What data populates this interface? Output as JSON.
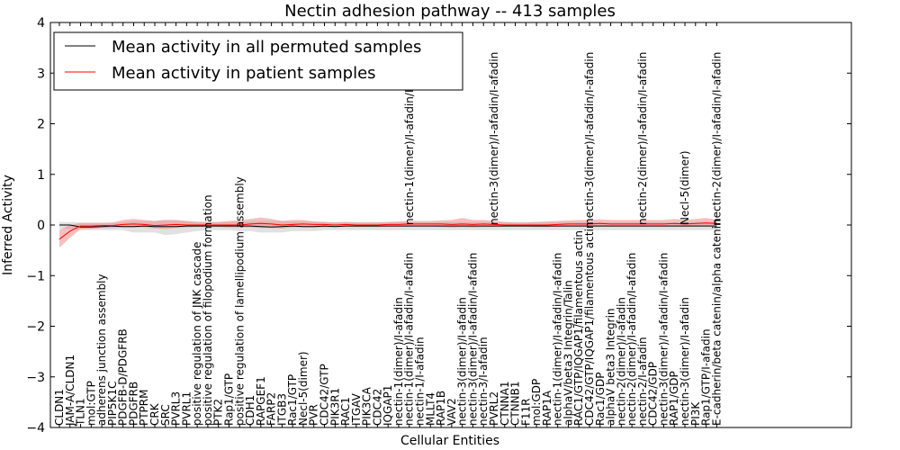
{
  "chart_data": {
    "type": "line",
    "title": "Nectin adhesion pathway -- 413 samples",
    "xlabel": "Cellular Entities",
    "ylabel": "Inferred Activity",
    "ylim": [
      -4,
      4
    ],
    "yticks": [
      -4,
      -3,
      -2,
      -1,
      0,
      1,
      2,
      3,
      4
    ],
    "ytick_labels": [
      "−4",
      "−3",
      "−2",
      "−1",
      "0",
      "1",
      "2",
      "3",
      "4"
    ],
    "legend_position": "top-left",
    "categories": [
      "CLDN1",
      "JAM-A/CLDN1",
      "TLN1",
      "mol:GTP",
      "adherens junction assembly",
      "PIP5K1C",
      "PDGFB-D/PDGFRB",
      "PDGFRB",
      "PTPRM",
      "CRK",
      "SRC",
      "PVRL3",
      "PVRL1",
      "positive regulation of JNK cascade",
      "positive regulation of filopodium formation",
      "PTK2",
      "Rap1/GTP",
      "positive regulation of lamellipodium assembly",
      "CDH1",
      "RAPGEF1",
      "FARP2",
      "ITGB3",
      "Rac1/GTP",
      "Necl-5(dimer)",
      "PVR",
      "CDC42/GTP",
      "PIK3R1",
      "RAC1",
      "ITGAV",
      "PIK3CA",
      "CDC42",
      "IQGAP1",
      "nectin-1(dimer)/I-afadin",
      "nectin-1(dimer)/I-afadin/I-afadin",
      "nectin-1/I-afadin",
      "MLLT4",
      "RAP1B",
      "VAV2",
      "nectin-3(dimer)/I-afadin",
      "nectin-3(dimer)/I-afadin/I-afadin",
      "nectin-3/I-afadin",
      "PVRL2",
      "CTNNA1",
      "CTNNB1",
      "F11R",
      "mol:GDP",
      "RAP1A",
      "nectin-1(dimer)/I-afadin/I-afadin",
      "alphaV/beta3 Integrin/Talin",
      "RAC1/GTP/IQGAP1/filamentous actin",
      "CDC42/GTP/IQGAP1/filamentous actin",
      "Rac1/GDP",
      "alphaV beta3 Integrin",
      "nectin-2(dimer)/I-afadin",
      "nectin-2(dimer)/I-afadin/I-afadin",
      "nectin-2/I-afadin",
      "CDC42/GDP",
      "nectin-3(dimer)/I-afadin/I-afadin",
      "RAP1/GDP",
      "nectin-3(dimer)/I-afadin",
      "PI3K",
      "Rap1/GTP/I-afadin",
      "E-cadherin/beta catenin/alpha catenin"
    ],
    "upper_labels": [
      {
        "index": 32,
        "text": "nectin-1(dimer)/I-afadin/I-afadin"
      },
      {
        "index": 40,
        "text": "nectin-3(dimer)/I-afadin/I-afadin"
      },
      {
        "index": 49,
        "text": "nectin-3(dimer)/I-afadin/I-afadin"
      },
      {
        "index": 54,
        "text": "nectin-2(dimer)/I-afadin/I-afadin"
      },
      {
        "index": 58,
        "text": "Necl-5(dimer)"
      },
      {
        "index": 61,
        "text": "nectin-2(dimer)/I-afadin/I-afadin"
      }
    ],
    "series": [
      {
        "name": "Mean activity in all permuted samples",
        "color": "#000000",
        "values": [
          0.0,
          0.0,
          -0.04,
          -0.04,
          -0.03,
          -0.02,
          -0.03,
          -0.03,
          -0.02,
          -0.03,
          -0.03,
          -0.03,
          -0.02,
          -0.02,
          -0.02,
          -0.02,
          -0.02,
          -0.02,
          -0.02,
          -0.03,
          -0.04,
          -0.03,
          -0.02,
          -0.03,
          -0.03,
          -0.02,
          -0.03,
          -0.02,
          -0.02,
          -0.02,
          -0.02,
          -0.02,
          -0.02,
          -0.02,
          -0.02,
          -0.02,
          -0.02,
          -0.02,
          -0.02,
          -0.02,
          -0.02,
          -0.02,
          -0.02,
          -0.02,
          -0.02,
          -0.02,
          -0.02,
          -0.02,
          -0.02,
          -0.02,
          -0.02,
          -0.02,
          -0.02,
          -0.02,
          -0.02,
          -0.02,
          -0.02,
          -0.02,
          -0.02,
          -0.02,
          -0.02,
          -0.02,
          -0.02
        ],
        "band_lower": [
          -0.08,
          -0.08,
          -0.1,
          -0.1,
          -0.1,
          -0.1,
          -0.1,
          -0.15,
          -0.15,
          -0.15,
          -0.2,
          -0.18,
          -0.15,
          -0.12,
          -0.1,
          -0.1,
          -0.1,
          -0.12,
          -0.12,
          -0.15,
          -0.15,
          -0.15,
          -0.12,
          -0.12,
          -0.12,
          -0.1,
          -0.1,
          -0.1,
          -0.1,
          -0.1,
          -0.1,
          -0.1,
          -0.1,
          -0.1,
          -0.1,
          -0.1,
          -0.1,
          -0.1,
          -0.1,
          -0.1,
          -0.1,
          -0.1,
          -0.1,
          -0.1,
          -0.1,
          -0.1,
          -0.1,
          -0.1,
          -0.1,
          -0.1,
          -0.1,
          -0.1,
          -0.1,
          -0.1,
          -0.1,
          -0.1,
          -0.1,
          -0.1,
          -0.1,
          -0.1,
          -0.1,
          -0.1,
          -0.1
        ],
        "band_upper": [
          0.06,
          0.06,
          0.05,
          0.05,
          0.05,
          0.05,
          0.05,
          0.08,
          0.08,
          0.08,
          0.1,
          0.09,
          0.08,
          0.07,
          0.06,
          0.06,
          0.06,
          0.07,
          0.07,
          0.08,
          0.08,
          0.08,
          0.07,
          0.07,
          0.07,
          0.06,
          0.06,
          0.06,
          0.06,
          0.06,
          0.06,
          0.06,
          0.06,
          0.06,
          0.06,
          0.06,
          0.06,
          0.06,
          0.06,
          0.06,
          0.06,
          0.06,
          0.06,
          0.06,
          0.06,
          0.06,
          0.06,
          0.06,
          0.06,
          0.06,
          0.06,
          0.06,
          0.06,
          0.06,
          0.06,
          0.06,
          0.06,
          0.06,
          0.06,
          0.06,
          0.06,
          0.06,
          0.06
        ]
      },
      {
        "name": "Mean activity in patient samples",
        "color": "#ff0000",
        "values": [
          -0.28,
          -0.12,
          -0.02,
          -0.02,
          -0.01,
          -0.01,
          0.01,
          0.02,
          0.01,
          -0.01,
          0.0,
          0.01,
          0.0,
          0.0,
          0.0,
          0.0,
          0.0,
          0.0,
          0.02,
          0.03,
          0.02,
          0.0,
          0.01,
          0.02,
          0.01,
          0.01,
          0.0,
          0.01,
          0.0,
          0.0,
          0.0,
          0.01,
          0.01,
          0.02,
          0.02,
          0.02,
          0.02,
          0.01,
          0.02,
          0.01,
          0.02,
          0.01,
          0.0,
          0.0,
          0.0,
          0.0,
          0.0,
          0.01,
          0.02,
          0.02,
          0.02,
          0.03,
          0.02,
          0.02,
          0.02,
          0.02,
          0.02,
          0.02,
          0.03,
          0.02,
          0.03,
          0.04,
          0.03
        ],
        "band_lower": [
          -0.45,
          -0.25,
          -0.08,
          -0.08,
          -0.06,
          -0.06,
          -0.05,
          -0.05,
          -0.05,
          -0.07,
          -0.08,
          -0.06,
          -0.05,
          -0.04,
          -0.04,
          -0.04,
          -0.05,
          -0.05,
          -0.05,
          -0.06,
          -0.06,
          -0.07,
          -0.05,
          -0.05,
          -0.05,
          -0.05,
          -0.04,
          -0.04,
          -0.04,
          -0.04,
          -0.04,
          -0.03,
          -0.03,
          -0.03,
          -0.03,
          -0.03,
          -0.04,
          -0.05,
          -0.04,
          -0.05,
          -0.04,
          -0.04,
          -0.03,
          -0.03,
          -0.03,
          -0.04,
          -0.04,
          -0.03,
          -0.03,
          -0.03,
          -0.03,
          -0.03,
          -0.03,
          -0.03,
          -0.03,
          -0.03,
          -0.03,
          -0.03,
          -0.03,
          -0.03,
          -0.03,
          -0.02,
          -0.02
        ],
        "band_upper": [
          -0.1,
          0.0,
          0.04,
          0.04,
          0.04,
          0.05,
          0.1,
          0.12,
          0.1,
          0.08,
          0.1,
          0.1,
          0.08,
          0.06,
          0.06,
          0.06,
          0.08,
          0.09,
          0.12,
          0.15,
          0.12,
          0.08,
          0.1,
          0.1,
          0.07,
          0.06,
          0.05,
          0.06,
          0.05,
          0.05,
          0.05,
          0.06,
          0.07,
          0.08,
          0.08,
          0.08,
          0.09,
          0.1,
          0.14,
          0.1,
          0.1,
          0.08,
          0.06,
          0.05,
          0.05,
          0.06,
          0.07,
          0.08,
          0.09,
          0.1,
          0.1,
          0.11,
          0.1,
          0.1,
          0.1,
          0.1,
          0.1,
          0.1,
          0.12,
          0.1,
          0.12,
          0.14,
          0.1
        ]
      }
    ]
  }
}
